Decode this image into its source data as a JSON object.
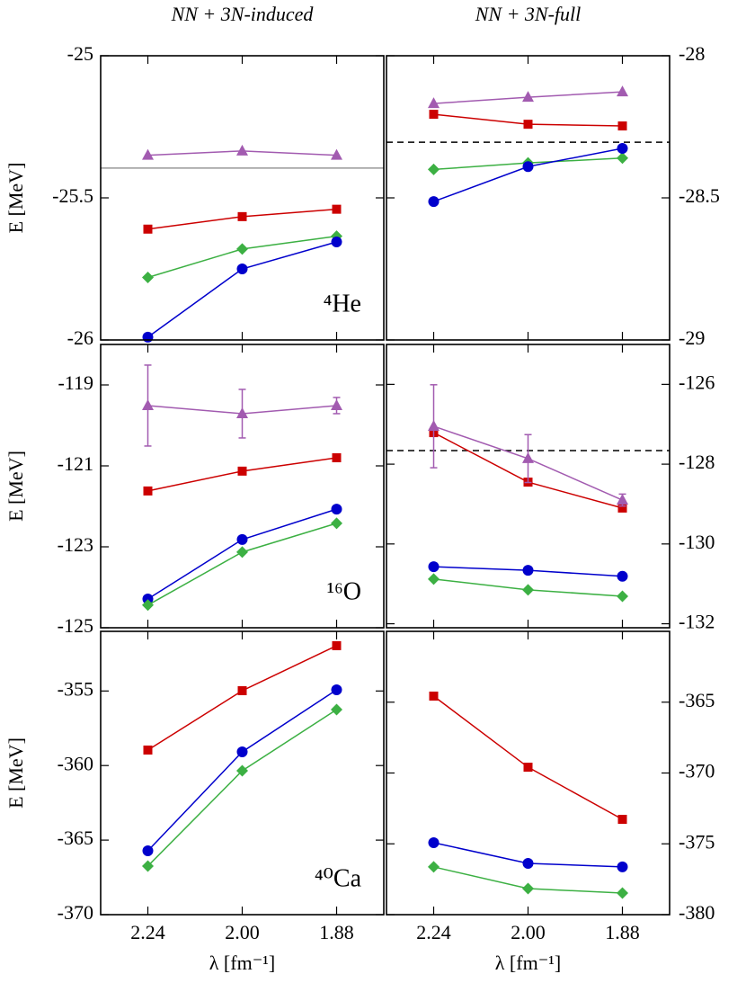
{
  "chart_data": [
    {
      "type": "line",
      "title": "NN + 3N-induced",
      "ylabel": "E [MeV]",
      "annotation": "⁴He",
      "categories": [
        null,
        null,
        null
      ],
      "ylim": [
        -26,
        -25
      ],
      "yticks": [
        -25,
        -25.5,
        -26
      ],
      "y_axis_side": "left",
      "reference_line": {
        "value": -25.395,
        "style": "solid",
        "color": "#999999"
      },
      "series": [
        {
          "marker": "triangle",
          "color": "#a25bb0",
          "values": [
            -25.35,
            -25.335,
            -25.35
          ]
        },
        {
          "marker": "square",
          "color": "#cc0000",
          "values": [
            -25.61,
            -25.566,
            -25.54
          ]
        },
        {
          "marker": "diamond",
          "color": "#3cb043",
          "values": [
            -25.78,
            -25.68,
            -25.635
          ]
        },
        {
          "marker": "circle",
          "color": "#0000cc",
          "values": [
            -25.99,
            -25.75,
            -25.655
          ]
        }
      ]
    },
    {
      "type": "line",
      "title": "NN + 3N-full",
      "categories": [
        null,
        null,
        null
      ],
      "ylim": [
        -29,
        -28
      ],
      "yticks": [
        -28,
        -28.5,
        -29
      ],
      "y_axis_side": "right",
      "reference_line": {
        "value": -28.304,
        "style": "dashed",
        "color": "#000000"
      },
      "series": [
        {
          "marker": "triangle",
          "color": "#a25bb0",
          "values": [
            -28.168,
            -28.146,
            -28.127
          ]
        },
        {
          "marker": "square",
          "color": "#cc0000",
          "values": [
            -28.206,
            -28.241,
            -28.247
          ]
        },
        {
          "marker": "diamond",
          "color": "#3cb043",
          "values": [
            -28.4,
            -28.377,
            -28.36
          ]
        },
        {
          "marker": "circle",
          "color": "#0000cc",
          "values": [
            -28.513,
            -28.39,
            -28.326
          ]
        }
      ]
    },
    {
      "type": "line",
      "ylabel": "E [MeV]",
      "annotation": "¹⁶O",
      "categories": [
        null,
        null,
        null
      ],
      "ylim": [
        -125,
        -118
      ],
      "yticks": [
        -119,
        -121,
        -123,
        -125
      ],
      "y_axis_side": "left",
      "series": [
        {
          "marker": "triangle",
          "color": "#a25bb0",
          "values": [
            -119.51,
            -119.71,
            -119.51
          ],
          "errors": [
            1.0,
            0.6,
            0.2
          ]
        },
        {
          "marker": "square",
          "color": "#cc0000",
          "values": [
            -121.62,
            -121.13,
            -120.8
          ]
        },
        {
          "marker": "circle",
          "color": "#0000cc",
          "values": [
            -124.29,
            -122.82,
            -122.07
          ]
        },
        {
          "marker": "diamond",
          "color": "#3cb043",
          "values": [
            -124.44,
            -123.13,
            -122.42
          ]
        }
      ]
    },
    {
      "type": "line",
      "categories": [
        null,
        null,
        null
      ],
      "ylim": [
        -132.1,
        -125
      ],
      "yticks": [
        -126,
        -128,
        -130,
        -132
      ],
      "y_axis_side": "right",
      "reference_line": {
        "value": -127.66,
        "style": "dashed",
        "color": "#000000"
      },
      "series": [
        {
          "marker": "square",
          "color": "#cc0000",
          "values": [
            -127.21,
            -128.45,
            -129.1
          ]
        },
        {
          "marker": "triangle",
          "color": "#a25bb0",
          "values": [
            -127.05,
            -127.86,
            -128.9
          ],
          "errors": [
            1.04,
            0.6,
            0.15
          ]
        },
        {
          "marker": "circle",
          "color": "#0000cc",
          "values": [
            -130.57,
            -130.66,
            -130.81
          ]
        },
        {
          "marker": "diamond",
          "color": "#3cb043",
          "values": [
            -130.88,
            -131.15,
            -131.31
          ]
        }
      ]
    },
    {
      "type": "line",
      "ylabel": "E [MeV]",
      "xlabel": "λ [fm⁻¹]",
      "annotation": "⁴⁰Ca",
      "categories": [
        "2.24",
        "2.00",
        "1.88"
      ],
      "ylim": [
        -370,
        -351
      ],
      "yticks": [
        -355,
        -360,
        -365,
        -370
      ],
      "y_axis_side": "left",
      "series": [
        {
          "marker": "square",
          "color": "#cc0000",
          "values": [
            -358.96,
            -354.98,
            -351.96
          ]
        },
        {
          "marker": "circle",
          "color": "#0000cc",
          "values": [
            -365.72,
            -359.08,
            -354.92
          ]
        },
        {
          "marker": "diamond",
          "color": "#3cb043",
          "values": [
            -366.74,
            -360.35,
            -356.25
          ]
        }
      ]
    },
    {
      "type": "line",
      "xlabel": "λ [fm⁻¹]",
      "categories": [
        "2.24",
        "2.00",
        "1.88"
      ],
      "ylim": [
        -380,
        -360
      ],
      "yticks": [
        -365,
        -370,
        -375,
        -380
      ],
      "y_axis_side": "right",
      "series": [
        {
          "marker": "square",
          "color": "#cc0000",
          "values": [
            -364.57,
            -369.59,
            -373.27
          ]
        },
        {
          "marker": "circle",
          "color": "#0000cc",
          "values": [
            -374.92,
            -376.38,
            -376.63
          ]
        },
        {
          "marker": "diamond",
          "color": "#3cb043",
          "values": [
            -376.63,
            -378.16,
            -378.48
          ]
        }
      ]
    }
  ]
}
